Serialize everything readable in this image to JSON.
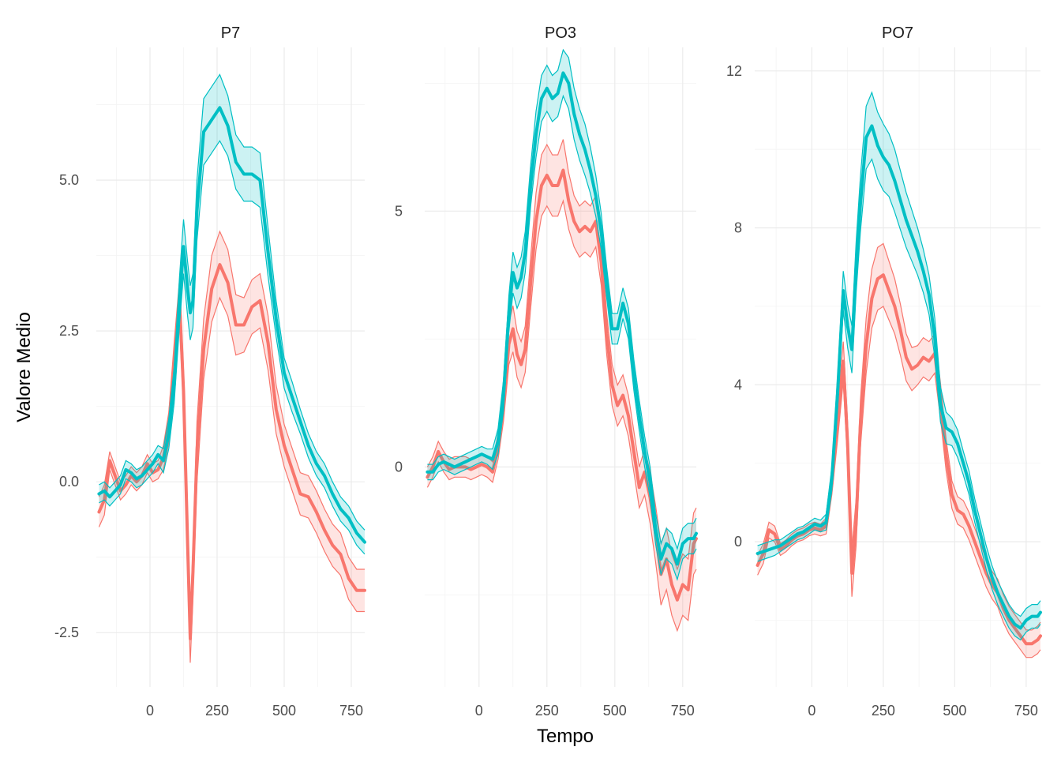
{
  "chart_data": {
    "type": "line",
    "xlabel": "Tempo",
    "ylabel": "Valore Medio",
    "grid": true,
    "legend": "none",
    "series_colors": [
      "#F8766D",
      "#00BFC4"
    ],
    "x_domain": [
      -200,
      800
    ],
    "x_ticks": [
      0,
      250,
      500,
      750
    ],
    "x_tick_labels": [
      "0",
      "250",
      "500",
      "750"
    ],
    "panels": [
      {
        "title": "P7",
        "ylim": [
          -3.4,
          7.2
        ],
        "y_ticks": [
          -2.5,
          0,
          2.5,
          5
        ],
        "y_tick_labels": [
          "-2.5",
          "0.0",
          "2.5",
          "5.0"
        ],
        "series": [
          {
            "x": [
              -190,
              -170,
              -150,
              -130,
              -110,
              -90,
              -70,
              -50,
              -30,
              -10,
              10,
              30,
              50,
              70,
              90,
              110,
              125,
              140,
              150,
              160,
              175,
              200,
              230,
              260,
              290,
              320,
              350,
              380,
              410,
              440,
              470,
              500,
              530,
              560,
              590,
              620,
              650,
              680,
              710,
              740,
              770,
              800
            ],
            "mean": [
              -0.5,
              -0.3,
              0.35,
              0.1,
              -0.15,
              -0.05,
              0.1,
              0.0,
              0.1,
              0.3,
              0.15,
              0.2,
              0.4,
              0.9,
              2.0,
              3.0,
              1.5,
              -1.0,
              -2.6,
              -1.5,
              0.5,
              2.2,
              3.2,
              3.6,
              3.3,
              2.6,
              2.6,
              2.9,
              3.0,
              2.3,
              1.2,
              0.6,
              0.2,
              -0.2,
              -0.25,
              -0.5,
              -0.8,
              -1.05,
              -1.2,
              -1.6,
              -1.8,
              -1.8
            ],
            "band": [
              0.25,
              0.25,
              0.15,
              0.15,
              0.15,
              0.15,
              0.15,
              0.15,
              0.15,
              0.15,
              0.15,
              0.15,
              0.2,
              0.25,
              0.3,
              0.35,
              0.35,
              0.4,
              0.4,
              0.4,
              0.5,
              0.5,
              0.55,
              0.55,
              0.55,
              0.5,
              0.45,
              0.45,
              0.45,
              0.45,
              0.4,
              0.35,
              0.35,
              0.35,
              0.35,
              0.35,
              0.35,
              0.35,
              0.35,
              0.35,
              0.35,
              0.35
            ]
          },
          {
            "x": [
              -190,
              -170,
              -150,
              -130,
              -110,
              -90,
              -70,
              -50,
              -30,
              -10,
              10,
              30,
              50,
              70,
              90,
              110,
              125,
              140,
              150,
              160,
              175,
              200,
              230,
              260,
              290,
              320,
              350,
              380,
              410,
              440,
              470,
              500,
              530,
              560,
              590,
              620,
              650,
              680,
              710,
              740,
              770,
              800
            ],
            "mean": [
              -0.2,
              -0.15,
              -0.25,
              -0.15,
              -0.05,
              0.2,
              0.15,
              0.05,
              0.1,
              0.2,
              0.3,
              0.45,
              0.35,
              0.8,
              1.6,
              3.0,
              3.9,
              3.2,
              2.8,
              3.0,
              4.5,
              5.8,
              6.0,
              6.2,
              5.9,
              5.3,
              5.1,
              5.1,
              5.0,
              3.8,
              2.7,
              1.8,
              1.4,
              1.0,
              0.6,
              0.3,
              0.1,
              -0.2,
              -0.45,
              -0.6,
              -0.85,
              -1.0
            ],
            "band": [
              0.15,
              0.15,
              0.15,
              0.15,
              0.15,
              0.15,
              0.15,
              0.15,
              0.15,
              0.15,
              0.15,
              0.15,
              0.2,
              0.25,
              0.3,
              0.4,
              0.45,
              0.45,
              0.45,
              0.45,
              0.5,
              0.55,
              0.55,
              0.55,
              0.5,
              0.45,
              0.45,
              0.45,
              0.45,
              0.4,
              0.3,
              0.25,
              0.25,
              0.2,
              0.2,
              0.2,
              0.2,
              0.2,
              0.2,
              0.2,
              0.2,
              0.2
            ]
          }
        ]
      },
      {
        "title": "PO3",
        "ylim": [
          -4.3,
          8.2
        ],
        "y_ticks": [
          0,
          5
        ],
        "y_tick_labels": [
          "0",
          "5"
        ],
        "series": [
          {
            "x": [
              -190,
              -170,
              -150,
              -130,
              -110,
              -90,
              -70,
              -50,
              -30,
              -10,
              10,
              30,
              50,
              70,
              90,
              110,
              125,
              140,
              155,
              170,
              190,
              210,
              230,
              250,
              270,
              290,
              310,
              330,
              350,
              370,
              390,
              410,
              430,
              450,
              470,
              490,
              510,
              530,
              550,
              570,
              590,
              610,
              630,
              650,
              670,
              690,
              710,
              730,
              750,
              770,
              790,
              800
            ],
            "mean": [
              -0.2,
              0.0,
              0.3,
              0.1,
              -0.05,
              0.0,
              0.0,
              0.0,
              -0.05,
              0.0,
              0.05,
              0.0,
              -0.1,
              0.4,
              1.2,
              2.4,
              2.7,
              2.2,
              2.0,
              2.3,
              3.6,
              4.8,
              5.5,
              5.7,
              5.5,
              5.5,
              5.8,
              5.2,
              4.8,
              4.6,
              4.7,
              4.6,
              4.8,
              4.0,
              2.6,
              1.6,
              1.2,
              1.4,
              1.0,
              0.3,
              -0.4,
              -0.1,
              -0.6,
              -1.3,
              -2.1,
              -1.8,
              -2.3,
              -2.6,
              -2.3,
              -2.4,
              -1.5,
              -1.4
            ],
            "band": [
              0.2,
              0.2,
              0.2,
              0.2,
              0.2,
              0.2,
              0.2,
              0.2,
              0.2,
              0.2,
              0.2,
              0.2,
              0.2,
              0.25,
              0.3,
              0.4,
              0.45,
              0.45,
              0.45,
              0.45,
              0.5,
              0.55,
              0.6,
              0.6,
              0.6,
              0.6,
              0.6,
              0.55,
              0.5,
              0.5,
              0.5,
              0.5,
              0.5,
              0.45,
              0.4,
              0.4,
              0.4,
              0.4,
              0.4,
              0.4,
              0.4,
              0.45,
              0.5,
              0.55,
              0.6,
              0.6,
              0.6,
              0.6,
              0.6,
              0.6,
              0.6,
              0.6
            ]
          },
          {
            "x": [
              -190,
              -170,
              -150,
              -130,
              -110,
              -90,
              -70,
              -50,
              -30,
              -10,
              10,
              30,
              50,
              70,
              90,
              110,
              125,
              140,
              155,
              170,
              190,
              210,
              230,
              250,
              270,
              290,
              310,
              330,
              350,
              370,
              390,
              410,
              430,
              450,
              470,
              490,
              510,
              530,
              550,
              570,
              590,
              610,
              630,
              650,
              670,
              690,
              710,
              730,
              750,
              770,
              790,
              800
            ],
            "mean": [
              -0.1,
              -0.1,
              0.05,
              0.1,
              0.05,
              0.0,
              0.05,
              0.1,
              0.15,
              0.2,
              0.25,
              0.2,
              0.15,
              0.5,
              1.4,
              3.0,
              3.8,
              3.5,
              3.7,
              4.2,
              5.5,
              6.5,
              7.2,
              7.4,
              7.2,
              7.3,
              7.7,
              7.5,
              6.9,
              6.5,
              6.2,
              5.8,
              5.3,
              4.6,
              3.6,
              2.7,
              2.7,
              3.2,
              2.8,
              1.8,
              1.0,
              0.3,
              -0.3,
              -1.2,
              -1.8,
              -1.5,
              -1.6,
              -1.9,
              -1.5,
              -1.4,
              -1.4,
              -1.3
            ],
            "band": [
              0.15,
              0.15,
              0.15,
              0.15,
              0.15,
              0.15,
              0.15,
              0.15,
              0.15,
              0.15,
              0.15,
              0.15,
              0.2,
              0.25,
              0.3,
              0.35,
              0.4,
              0.4,
              0.4,
              0.4,
              0.4,
              0.45,
              0.45,
              0.45,
              0.45,
              0.45,
              0.45,
              0.5,
              0.5,
              0.5,
              0.5,
              0.45,
              0.4,
              0.35,
              0.3,
              0.3,
              0.3,
              0.3,
              0.3,
              0.3,
              0.3,
              0.3,
              0.3,
              0.3,
              0.3,
              0.3,
              0.3,
              0.3,
              0.3,
              0.3,
              0.3,
              0.3
            ]
          }
        ]
      },
      {
        "title": "PO7",
        "ylim": [
          -3.7,
          12.6
        ],
        "y_ticks": [
          0,
          4,
          8,
          12
        ],
        "y_tick_labels": [
          "0",
          "4",
          "8",
          "12"
        ],
        "series": [
          {
            "x": [
              -190,
              -170,
              -150,
              -130,
              -110,
              -90,
              -70,
              -50,
              -30,
              -10,
              10,
              30,
              50,
              70,
              90,
              110,
              125,
              140,
              155,
              170,
              190,
              210,
              230,
              250,
              270,
              290,
              310,
              330,
              350,
              370,
              390,
              410,
              430,
              450,
              470,
              490,
              510,
              530,
              550,
              570,
              590,
              610,
              630,
              650,
              670,
              690,
              710,
              730,
              750,
              770,
              790,
              800
            ],
            "mean": [
              -0.6,
              -0.3,
              0.3,
              0.2,
              -0.2,
              -0.1,
              0.05,
              0.15,
              0.2,
              0.3,
              0.35,
              0.3,
              0.4,
              1.5,
              3.0,
              4.6,
              2.5,
              -0.8,
              0.5,
              3.0,
              5.0,
              6.2,
              6.7,
              6.8,
              6.4,
              6.0,
              5.4,
              4.7,
              4.4,
              4.5,
              4.7,
              4.6,
              4.8,
              3.6,
              2.2,
              1.2,
              0.8,
              0.7,
              0.4,
              0.0,
              -0.4,
              -0.8,
              -1.1,
              -1.3,
              -1.7,
              -2.0,
              -2.2,
              -2.4,
              -2.6,
              -2.6,
              -2.5,
              -2.4
            ],
            "band": [
              0.25,
              0.25,
              0.2,
              0.2,
              0.15,
              0.15,
              0.15,
              0.15,
              0.15,
              0.15,
              0.15,
              0.15,
              0.2,
              0.3,
              0.4,
              0.5,
              0.55,
              0.6,
              0.6,
              0.6,
              0.7,
              0.75,
              0.8,
              0.8,
              0.75,
              0.7,
              0.65,
              0.6,
              0.55,
              0.5,
              0.5,
              0.5,
              0.5,
              0.45,
              0.4,
              0.35,
              0.35,
              0.35,
              0.35,
              0.35,
              0.35,
              0.35,
              0.35,
              0.35,
              0.35,
              0.35,
              0.35,
              0.35,
              0.35,
              0.35,
              0.35,
              0.35
            ]
          },
          {
            "x": [
              -190,
              -170,
              -150,
              -130,
              -110,
              -90,
              -70,
              -50,
              -30,
              -10,
              10,
              30,
              50,
              70,
              90,
              110,
              125,
              140,
              155,
              170,
              190,
              210,
              230,
              250,
              270,
              290,
              310,
              330,
              350,
              370,
              390,
              410,
              430,
              450,
              470,
              490,
              510,
              530,
              550,
              570,
              590,
              610,
              630,
              650,
              670,
              690,
              710,
              730,
              750,
              770,
              790,
              800
            ],
            "mean": [
              -0.3,
              -0.25,
              -0.2,
              -0.15,
              -0.1,
              0.0,
              0.1,
              0.2,
              0.25,
              0.35,
              0.45,
              0.4,
              0.5,
              1.6,
              3.8,
              6.4,
              5.5,
              4.9,
              7.0,
              8.6,
              10.3,
              10.6,
              10.1,
              9.8,
              9.6,
              9.2,
              8.7,
              8.2,
              7.8,
              7.4,
              6.9,
              6.3,
              5.2,
              3.5,
              2.9,
              2.8,
              2.5,
              2.0,
              1.5,
              0.8,
              0.2,
              -0.4,
              -0.9,
              -1.3,
              -1.6,
              -1.9,
              -2.1,
              -2.2,
              -2.0,
              -1.9,
              -1.9,
              -1.8
            ],
            "band": [
              0.2,
              0.2,
              0.2,
              0.2,
              0.15,
              0.15,
              0.15,
              0.15,
              0.15,
              0.15,
              0.15,
              0.15,
              0.2,
              0.3,
              0.4,
              0.5,
              0.55,
              0.6,
              0.65,
              0.7,
              0.8,
              0.85,
              0.85,
              0.85,
              0.8,
              0.8,
              0.75,
              0.7,
              0.65,
              0.6,
              0.55,
              0.5,
              0.5,
              0.45,
              0.4,
              0.35,
              0.35,
              0.3,
              0.3,
              0.3,
              0.3,
              0.3,
              0.3,
              0.3,
              0.3,
              0.3,
              0.3,
              0.3,
              0.3,
              0.3,
              0.3,
              0.3
            ]
          }
        ]
      }
    ]
  }
}
